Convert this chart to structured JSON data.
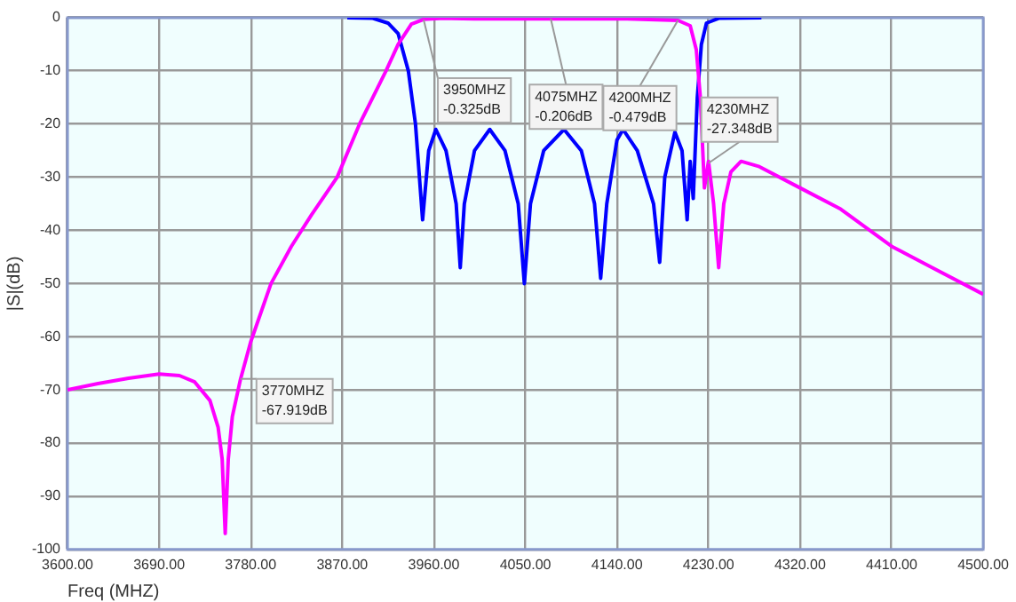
{
  "chart_data": {
    "type": "line",
    "xlabel": "Freq (MHZ)",
    "ylabel": "|S|(dB)",
    "xlim": [
      3600,
      4500
    ],
    "ylim": [
      -100,
      0
    ],
    "xticks": [
      {
        "value": 3600,
        "label": "3600.00"
      },
      {
        "value": 3690,
        "label": "3690.00"
      },
      {
        "value": 3780,
        "label": "3780.00"
      },
      {
        "value": 3870,
        "label": "3870.00"
      },
      {
        "value": 3960,
        "label": "3960.00"
      },
      {
        "value": 4050,
        "label": "4050.00"
      },
      {
        "value": 4140,
        "label": "4140.00"
      },
      {
        "value": 4230,
        "label": "4230.00"
      },
      {
        "value": 4320,
        "label": "4320.00"
      },
      {
        "value": 4410,
        "label": "4410.00"
      },
      {
        "value": 4500,
        "label": "4500.00"
      }
    ],
    "yticks": [
      0,
      -10,
      -20,
      -30,
      -40,
      -50,
      -60,
      -70,
      -80,
      -90,
      -100
    ],
    "grid": true,
    "legend": false,
    "marker": "none",
    "line_style": "solid",
    "series": [
      {
        "color": "#ff00ff",
        "x": [
          3600,
          3630,
          3660,
          3690,
          3710,
          3725,
          3740,
          3748,
          3752,
          3755,
          3758,
          3762,
          3770,
          3780,
          3800,
          3820,
          3840,
          3865,
          3887,
          3900,
          3913,
          3925,
          3938,
          3950,
          3970,
          4000,
          4075,
          4150,
          4200,
          4212,
          4218,
          4222,
          4226,
          4230,
          4235,
          4240,
          4245,
          4252,
          4262,
          4280,
          4320,
          4360,
          4410,
          4450,
          4500
        ],
        "values": [
          -70,
          -68.8,
          -67.8,
          -67,
          -67.3,
          -68.5,
          -72,
          -77,
          -83,
          -97,
          -83,
          -75,
          -68,
          -61,
          -50,
          -43,
          -37,
          -30,
          -20,
          -15,
          -10,
          -5,
          -1.2,
          -0.3,
          -0.1,
          -0.2,
          -0.2,
          -0.2,
          -0.5,
          -1.5,
          -6,
          -15,
          -32,
          -27,
          -35,
          -47,
          -35,
          -29,
          -27,
          -28,
          -32,
          -36,
          -43,
          -47,
          -52
        ]
      },
      {
        "color": "#0000ff",
        "x": [
          3875,
          3900,
          3915,
          3925,
          3935,
          3942,
          3949,
          3955,
          3962,
          3972,
          3982,
          3986,
          3990,
          4000,
          4015,
          4030,
          4043,
          4049,
          4055,
          4068,
          4088,
          4105,
          4118,
          4124,
          4130,
          4140,
          4146,
          4160,
          4176,
          4182,
          4187,
          4197,
          4204,
          4209,
          4212,
          4215,
          4219,
          4223,
          4228,
          4240,
          4282
        ],
        "values": [
          0,
          -0.1,
          -1,
          -3,
          -10,
          -20,
          -38,
          -25,
          -21,
          -25,
          -35,
          -47,
          -35,
          -25,
          -21,
          -25,
          -35,
          -50,
          -35,
          -25,
          -21,
          -25,
          -35,
          -49,
          -35,
          -23,
          -21,
          -25,
          -35,
          -46,
          -30,
          -21.5,
          -25,
          -38,
          -27,
          -34,
          -15,
          -5,
          -1,
          -0.1,
          0
        ]
      }
    ],
    "annotations": [
      {
        "text": "3950MHZ\n-0.325dB",
        "x": 3950,
        "y": -0.325
      },
      {
        "text": "4075MHZ\n-0.206dB",
        "x": 4075,
        "y": -0.206
      },
      {
        "text": "4200MHZ\n-0.479dB",
        "x": 4200,
        "y": -0.479
      },
      {
        "text": "4230MHZ\n-27.348dB",
        "x": 4230,
        "y": -27.348
      },
      {
        "text": "3770MHZ\n-67.919dB",
        "x": 3770,
        "y": -67.919
      }
    ]
  }
}
